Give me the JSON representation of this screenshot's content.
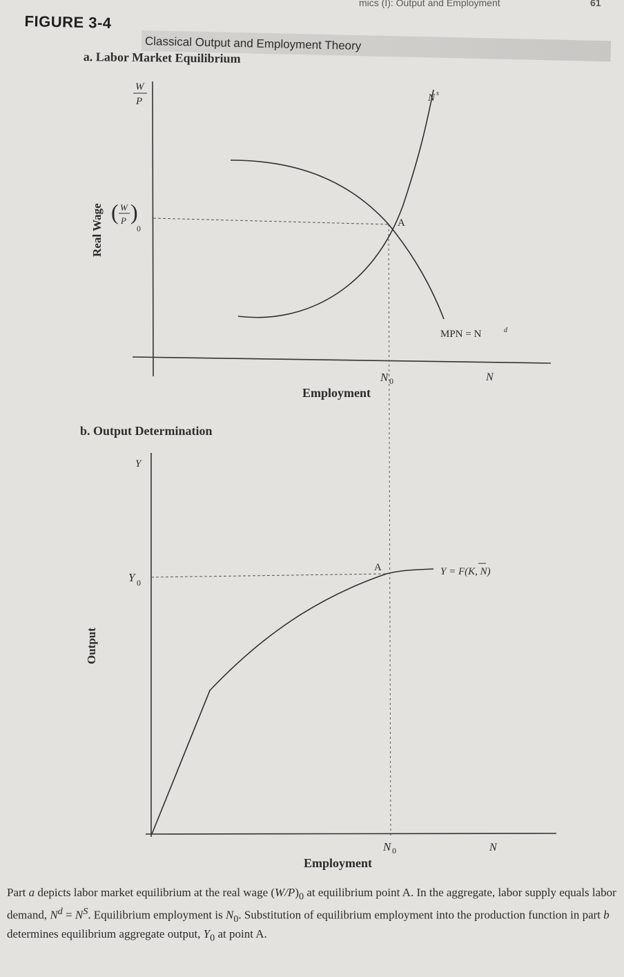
{
  "running_header": {
    "text": "mics (I): Output and Employment",
    "page": "61"
  },
  "figure": {
    "number": "FIGURE 3-4",
    "title": "Classical Output and Employment Theory"
  },
  "panel_a": {
    "title": "a. Labor Market Equilibrium",
    "y_axis_var_num": "W",
    "y_axis_var_den": "P",
    "y_axis_label": "Real Wage",
    "eq_wage_num": "W",
    "eq_wage_den": "P",
    "eq_wage_sub": "0",
    "supply_label": "N",
    "supply_sup": "s",
    "demand_label": "MPN = N",
    "demand_sup": "d",
    "point_label": "A",
    "eq_employment": "N",
    "eq_employment_sub": "0",
    "x_axis_var": "N",
    "x_axis_label": "Employment"
  },
  "panel_b": {
    "title": "b. Output Determination",
    "y_axis_var": "Y",
    "y_axis_label": "Output",
    "eq_output": "Y",
    "eq_output_sub": "0",
    "function_label": "Y = F(K, N)",
    "point_label": "A",
    "eq_employment": "N",
    "eq_employment_sub": "0",
    "x_axis_var": "N",
    "x_axis_label": "Employment"
  },
  "caption": {
    "s1": "Part ",
    "s2": "a",
    "s3": " depicts labor market equilibrium at the real wage (",
    "s4": "W/P",
    "s5": ")",
    "s6": "0",
    "s7": " at equilibrium point A. In the aggregate, labor supply equals labor demand, ",
    "s8": "N",
    "s9": "d",
    "s10": " = ",
    "s11": "N",
    "s12": "S",
    "s13": ". Equilibrium employment is ",
    "s14": "N",
    "s15": "0",
    "s16": ". Substitution of equilibrium employment into the production function in part ",
    "s17": "b",
    "s18": " determines equilibrium aggregate output, ",
    "s19": "Y",
    "s20": "0",
    "s21": " at point A."
  }
}
